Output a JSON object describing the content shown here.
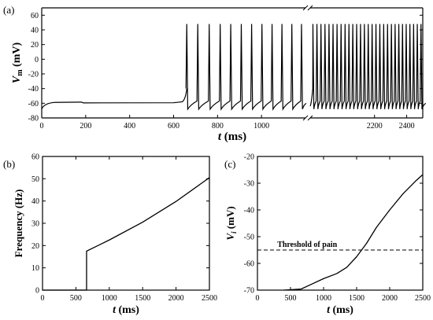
{
  "chart_data": [
    {
      "panel_label": "(a)",
      "type": "line",
      "xlabel": "t (ms)",
      "ylabel": "Vm (mV)",
      "ylim": [
        -80,
        70
      ],
      "yticks": [
        "-80",
        "-60",
        "-40",
        "-20",
        "0",
        "20",
        "40",
        "60"
      ],
      "x_segments": [
        {
          "xlim": [
            0,
            1200
          ],
          "xticks": [
            "0",
            "200",
            "400",
            "600",
            "800",
            "1000"
          ]
        },
        {
          "xlim": [
            1800,
            2500
          ],
          "xticks": [
            "2200",
            "2400"
          ]
        }
      ],
      "axis_break": true,
      "resting_potential": -58,
      "spike_peak": 48,
      "after_hyperpolarization": -68,
      "spike_onset": 660,
      "spike_times": [
        660,
        710,
        762,
        812,
        860,
        908,
        955,
        1002,
        1048,
        1093,
        1138,
        1182,
        1817,
        1842,
        1867,
        1892,
        1917,
        1942,
        1967,
        1992,
        2017,
        2041,
        2065,
        2089,
        2113,
        2137,
        2161,
        2185,
        2209,
        2233,
        2257,
        2281,
        2305,
        2328,
        2351,
        2374,
        2397,
        2420,
        2443,
        2466,
        2489
      ]
    },
    {
      "panel_label": "(b)",
      "type": "line",
      "xlabel": "t (ms)",
      "ylabel": "Frequency (Hz)",
      "xlim": [
        0,
        2500
      ],
      "ylim": [
        0,
        60
      ],
      "xticks": [
        "0",
        "500",
        "1000",
        "1500",
        "2000",
        "2500"
      ],
      "yticks": [
        "0",
        "10",
        "20",
        "30",
        "40",
        "50",
        "60"
      ],
      "series": [
        {
          "x": [
            0,
            660,
            660,
            1000,
            1500,
            2000,
            2500
          ],
          "y": [
            0,
            0,
            17.5,
            22.5,
            30.5,
            39.8,
            50.5
          ]
        }
      ]
    },
    {
      "panel_label": "(c)",
      "type": "line",
      "xlabel": "t (ms)",
      "ylabel": "Vi (mV)",
      "xlim": [
        0,
        2500
      ],
      "ylim": [
        -70,
        -20
      ],
      "xticks": [
        "0",
        "500",
        "1000",
        "1500",
        "2000",
        "2500"
      ],
      "yticks": [
        "-70",
        "-60",
        "-50",
        "-40",
        "-30",
        "-20"
      ],
      "annotation": "Threshold of pain",
      "threshold": -55,
      "series": [
        {
          "x": [
            400,
            660,
            800,
            1000,
            1200,
            1350,
            1500,
            1650,
            1800,
            2000,
            2200,
            2400,
            2500
          ],
          "y": [
            -70,
            -69.6,
            -68,
            -65.7,
            -63.8,
            -61.5,
            -57.5,
            -52.5,
            -46.5,
            -40,
            -34,
            -29,
            -26.8
          ]
        }
      ]
    }
  ]
}
